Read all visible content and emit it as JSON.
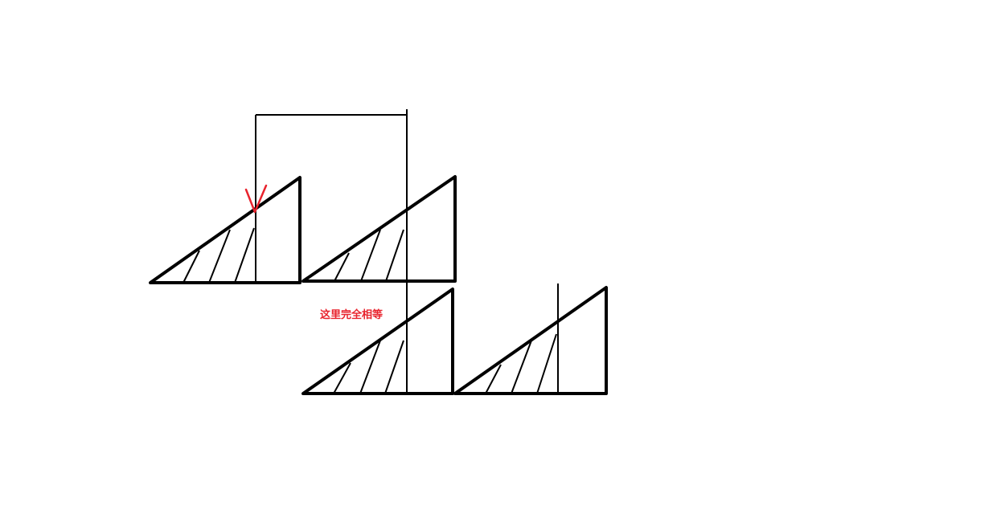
{
  "annotation": {
    "text": "这里完全相等"
  },
  "colors": {
    "stroke": "#000000",
    "marker": "#e8232d",
    "annotation": "#e8232d",
    "background": "#ffffff"
  },
  "marker": {
    "shape": "check-mark"
  }
}
